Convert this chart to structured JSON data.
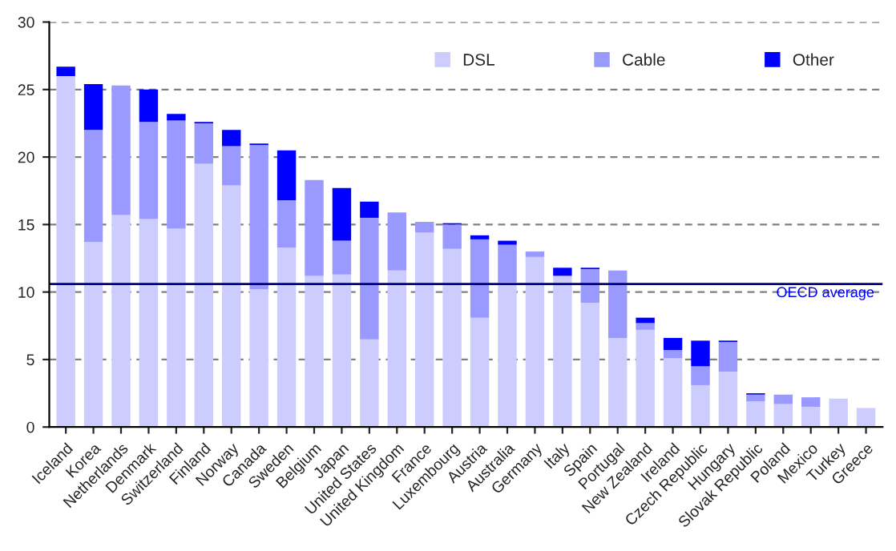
{
  "chart_data": {
    "type": "bar",
    "stacked": true,
    "categories": [
      "Iceland",
      "Korea",
      "Netherlands",
      "Denmark",
      "Switzerland",
      "Finland",
      "Norway",
      "Canada",
      "Sweden",
      "Belgium",
      "Japan",
      "United States",
      "United Kingdom",
      "France",
      "Luxembourg",
      "Austria",
      "Australia",
      "Germany",
      "Italy",
      "Spain",
      "Portugal",
      "New Zealand",
      "Ireland",
      "Czech Republic",
      "Hungary",
      "Slovak Republic",
      "Poland",
      "Mexico",
      "Turkey",
      "Greece"
    ],
    "series": [
      {
        "name": "DSL",
        "color": "#ccccff",
        "values": [
          26.0,
          13.7,
          15.7,
          15.4,
          14.7,
          19.5,
          17.9,
          10.2,
          13.3,
          11.2,
          11.3,
          6.5,
          11.6,
          14.4,
          13.2,
          8.1,
          10.7,
          12.6,
          11.2,
          9.2,
          6.6,
          7.2,
          5.1,
          3.1,
          4.1,
          1.9,
          1.7,
          1.5,
          2.1,
          1.4
        ]
      },
      {
        "name": "Cable",
        "color": "#9999ff",
        "values": [
          0,
          8.3,
          9.6,
          7.2,
          8.0,
          3.0,
          2.9,
          10.7,
          3.5,
          7.1,
          2.5,
          9.0,
          4.3,
          0.8,
          1.8,
          5.8,
          2.8,
          0.4,
          0,
          2.5,
          5.0,
          0.5,
          0.6,
          1.4,
          2.2,
          0.5,
          0.7,
          0.7,
          0,
          0
        ]
      },
      {
        "name": "Other",
        "color": "#0000ff",
        "values": [
          0.7,
          3.4,
          0,
          2.4,
          0.5,
          0.1,
          1.2,
          0.1,
          3.7,
          0,
          3.9,
          1.2,
          0,
          0,
          0.1,
          0.3,
          0.3,
          0,
          0.6,
          0.1,
          0,
          0.4,
          0.9,
          1.9,
          0.1,
          0.1,
          0,
          0,
          0,
          0
        ]
      }
    ],
    "ylim": [
      0,
      30
    ],
    "yticks": [
      0,
      5,
      10,
      15,
      20,
      25,
      30
    ],
    "grid": "y",
    "legend": "top right",
    "ref_lines": [
      {
        "axis": "y",
        "value": 10.6,
        "label": "OECD average",
        "color": "#000080"
      }
    ]
  }
}
